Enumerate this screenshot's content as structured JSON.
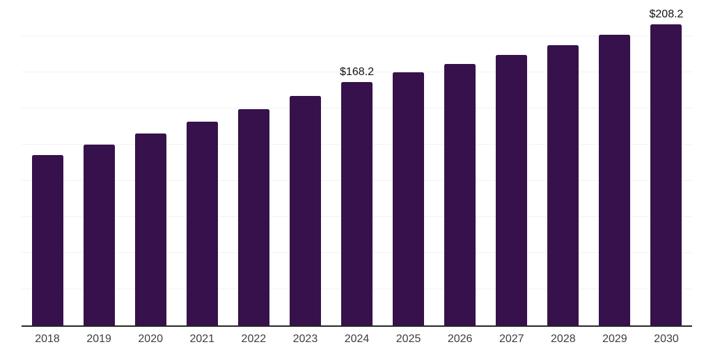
{
  "chart_data": {
    "type": "bar",
    "title": "",
    "categories": [
      "2018",
      "2019",
      "2020",
      "2021",
      "2022",
      "2023",
      "2024",
      "2025",
      "2026",
      "2027",
      "2028",
      "2029",
      "2030"
    ],
    "values": [
      117.6,
      125.2,
      132.9,
      141.0,
      149.7,
      158.6,
      168.2,
      174.9,
      180.6,
      187.0,
      193.9,
      200.9,
      208.2
    ],
    "data_labels": [
      "",
      "",
      "",
      "",
      "",
      "",
      "$168.2",
      "",
      "",
      "",
      "",
      "",
      "$208.2"
    ],
    "xlabel": "",
    "ylabel": "",
    "ylim": [
      0,
      225
    ],
    "gridline_step": 25,
    "grid": "horizontal-only",
    "legend_position": "none",
    "colors": {
      "bar": "#36114B",
      "gridline": "#f2f2f2",
      "axis_line": "#262626",
      "tick_label": "#3d3d3d",
      "value_label": "#111111",
      "background": "#ffffff"
    }
  }
}
